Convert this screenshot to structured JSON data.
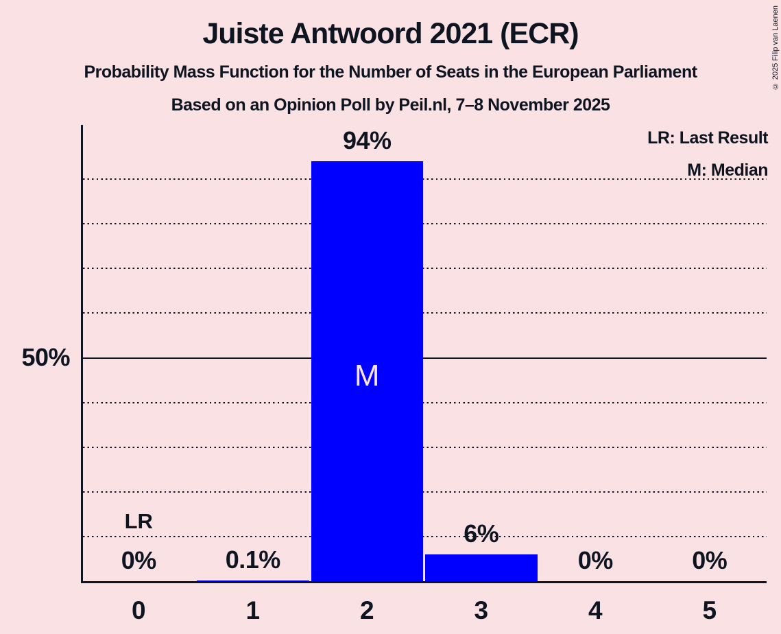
{
  "title": "Juiste Antwoord 2021 (ECR)",
  "subtitle1": "Probability Mass Function for the Number of Seats in the European Parliament",
  "subtitle2": "Based on an Opinion Poll by Peil.nl, 7–8 November 2025",
  "copyright": "© 2025 Filip van Laenen",
  "legend": {
    "lr": "LR: Last Result",
    "m": "M: Median"
  },
  "colors": {
    "background": "#FAE2E4",
    "bar": "#0000FF",
    "ink": "#0E1420"
  },
  "chart_data": {
    "type": "bar",
    "title": "Juiste Antwoord 2021 (ECR)",
    "categories": [
      "0",
      "1",
      "2",
      "3",
      "4",
      "5"
    ],
    "values": [
      0,
      0.1,
      94,
      6,
      0,
      0
    ],
    "value_labels": [
      "0%",
      "0.1%",
      "94%",
      "6%",
      "0%",
      "0%"
    ],
    "ylim": [
      0,
      100
    ],
    "ytick": {
      "value": 50,
      "label": "50%"
    },
    "gridlines": {
      "dotted_every": 10,
      "solid_at": 50
    },
    "annotations": {
      "last_result_label": "LR",
      "last_result_seat": 0,
      "median_label": "M",
      "median_seat": 2
    },
    "legend_position": "top-right",
    "xlabel": "",
    "ylabel": ""
  }
}
